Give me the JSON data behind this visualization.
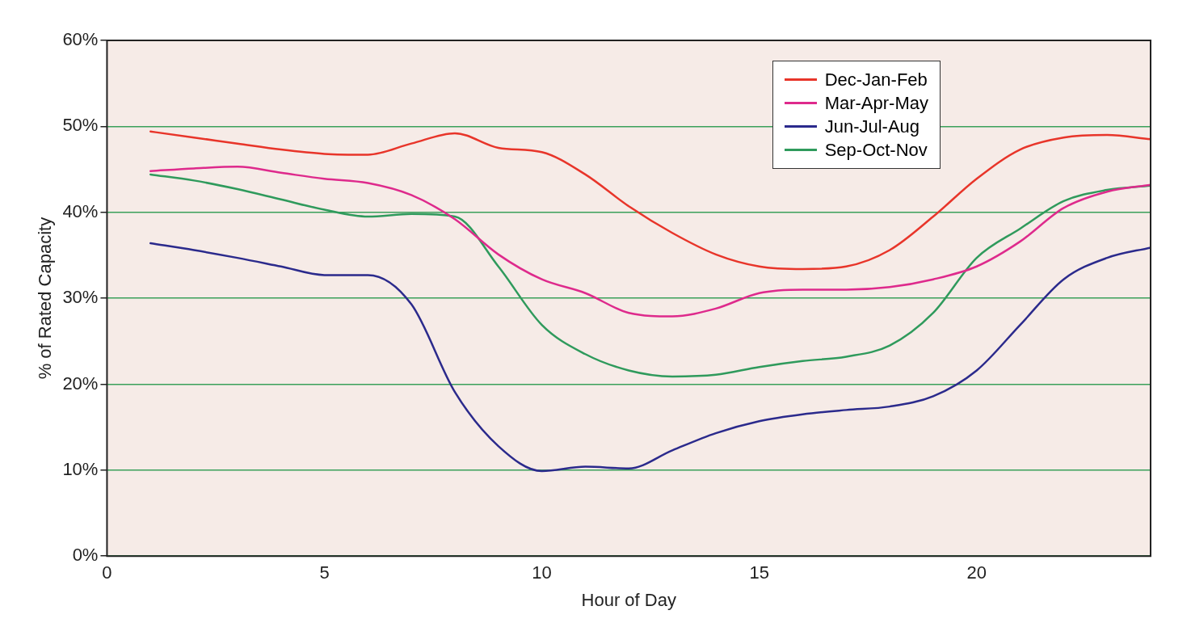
{
  "chart_data": {
    "type": "line",
    "xlabel": "Hour of Day",
    "ylabel": "% of Rated Capacity",
    "x": [
      1,
      2,
      3,
      4,
      5,
      6,
      7,
      8,
      9,
      10,
      11,
      12,
      13,
      14,
      15,
      16,
      17,
      18,
      19,
      20,
      21,
      22,
      23,
      24
    ],
    "xlim": [
      0,
      24
    ],
    "xticks": [
      0,
      5,
      10,
      15,
      20
    ],
    "ylim": [
      0,
      60
    ],
    "yticks": [
      {
        "value": 0,
        "label": "0%"
      },
      {
        "value": 10,
        "label": "10%"
      },
      {
        "value": 20,
        "label": "20%"
      },
      {
        "value": 30,
        "label": "30%"
      },
      {
        "value": 40,
        "label": "40%"
      },
      {
        "value": 50,
        "label": "50%"
      },
      {
        "value": 60,
        "label": "60%"
      }
    ],
    "grid": "y",
    "legend": "top right",
    "marker": "none",
    "line_style": "solid",
    "series": [
      {
        "name": "Dec-Jan-Feb",
        "color": "#e8352a",
        "values": [
          49.4,
          48.7,
          48,
          47.3,
          46.8,
          46.7,
          48,
          49.2,
          47.5,
          47,
          44.4,
          40.7,
          37.6,
          35.1,
          33.7,
          33.4,
          33.7,
          35.6,
          39.5,
          43.9,
          47.3,
          48.7,
          49,
          48.5
        ]
      },
      {
        "name": "Mar-Apr-May",
        "color": "#de2a8c",
        "values": [
          44.8,
          45.1,
          45.3,
          44.6,
          43.9,
          43.4,
          42,
          39.2,
          35.1,
          32.2,
          30.6,
          28.3,
          27.9,
          28.8,
          30.6,
          31,
          31,
          31.3,
          32.2,
          33.7,
          36.6,
          40.5,
          42.4,
          43.2
        ]
      },
      {
        "name": "Jun-Jul-Aug",
        "color": "#2b2a8c",
        "values": [
          36.4,
          35.6,
          34.7,
          33.7,
          32.7,
          32.7,
          29.3,
          19.1,
          12.8,
          9.9,
          10.4,
          10.2,
          12.3,
          14.3,
          15.7,
          16.5,
          17,
          17.4,
          18.6,
          21.6,
          26.9,
          32.2,
          34.7,
          35.9
        ]
      },
      {
        "name": "Sep-Oct-Nov",
        "color": "#2f9a5c",
        "values": [
          44.4,
          43.7,
          42.7,
          41.5,
          40.3,
          39.5,
          39.8,
          39.5,
          33.7,
          26.9,
          23.5,
          21.6,
          20.9,
          21.1,
          22,
          22.7,
          23.2,
          24.5,
          28.3,
          34.7,
          38.1,
          41.3,
          42.6,
          43.1
        ]
      }
    ]
  }
}
